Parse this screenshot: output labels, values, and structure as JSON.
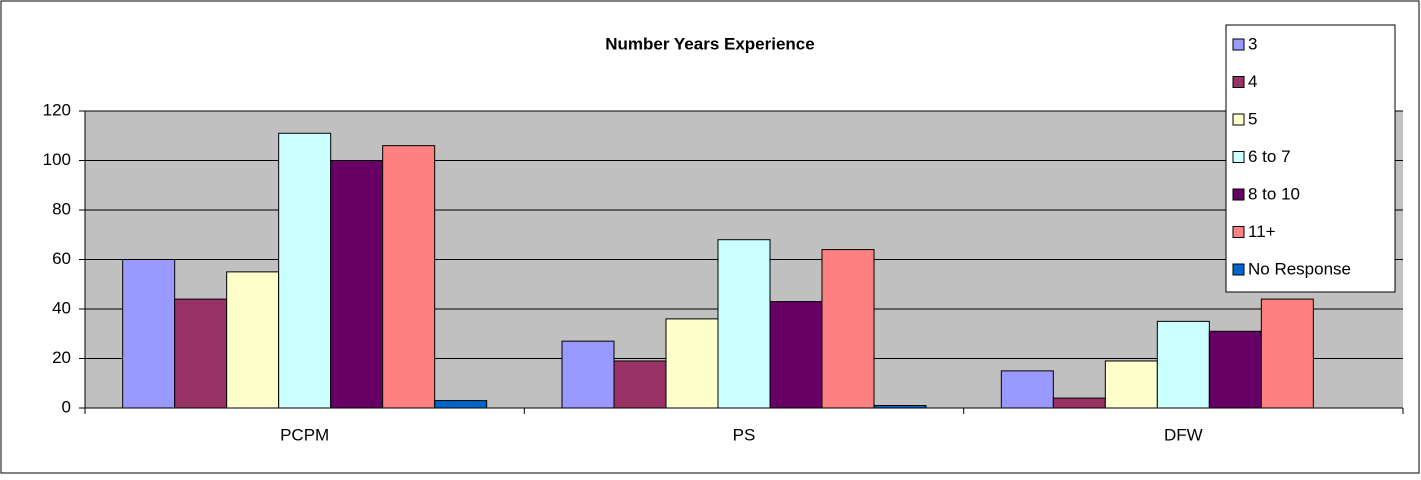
{
  "chart_data": {
    "type": "bar",
    "title": "Number Years Experience",
    "categories": [
      "PCPM",
      "PS",
      "DFW"
    ],
    "series": [
      {
        "name": "3",
        "color": "#9999ff",
        "values": [
          60,
          27,
          15
        ]
      },
      {
        "name": "4",
        "color": "#993366",
        "values": [
          44,
          19,
          4
        ]
      },
      {
        "name": "5",
        "color": "#ffffcc",
        "values": [
          55,
          36,
          19
        ]
      },
      {
        "name": "6 to 7",
        "color": "#ccffff",
        "values": [
          111,
          68,
          35
        ]
      },
      {
        "name": "8 to 10",
        "color": "#660066",
        "values": [
          100,
          43,
          31
        ]
      },
      {
        "name": "11+",
        "color": "#ff8080",
        "values": [
          106,
          64,
          44
        ]
      },
      {
        "name": "No  Response",
        "color": "#0066cc",
        "values": [
          3,
          1,
          0
        ]
      }
    ],
    "ylim": [
      0,
      120
    ],
    "yticks": [
      0,
      20,
      40,
      60,
      80,
      100,
      120
    ],
    "grid": true,
    "legend": "right"
  }
}
